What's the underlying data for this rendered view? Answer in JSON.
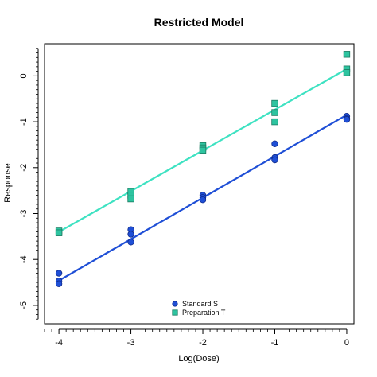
{
  "chart_data": {
    "type": "scatter",
    "title": "Restricted Model",
    "xlabel": "Log(Dose)",
    "ylabel": "Response",
    "xlim": [
      -4.2,
      0.1
    ],
    "ylim": [
      -5.4,
      0.7
    ],
    "xticks": [
      -4,
      -3,
      -2,
      -1,
      0
    ],
    "yticks": [
      -5,
      -4,
      -3,
      -2,
      -1,
      0
    ],
    "grid": false,
    "legend_position": "bottom-center",
    "series": [
      {
        "name": "Standard S",
        "marker": "circle",
        "color": "#1f4fd6",
        "line_color": "#1f4fd6",
        "points": [
          {
            "x": -4,
            "y": -4.3
          },
          {
            "x": -4,
            "y": -4.47
          },
          {
            "x": -4,
            "y": -4.53
          },
          {
            "x": -3,
            "y": -3.35
          },
          {
            "x": -3,
            "y": -3.45
          },
          {
            "x": -3,
            "y": -3.62
          },
          {
            "x": -2,
            "y": -2.6
          },
          {
            "x": -2,
            "y": -2.65
          },
          {
            "x": -2,
            "y": -2.7
          },
          {
            "x": -1,
            "y": -1.48
          },
          {
            "x": -1,
            "y": -1.78
          },
          {
            "x": -1,
            "y": -1.83
          },
          {
            "x": 0,
            "y": -0.88
          },
          {
            "x": 0,
            "y": -0.93
          },
          {
            "x": 0,
            "y": -0.95
          }
        ],
        "fit": [
          {
            "x": -4,
            "y": -4.46
          },
          {
            "x": 0,
            "y": -0.85
          }
        ]
      },
      {
        "name": "Preparation T",
        "marker": "square",
        "color": "#2ec4a0",
        "line_color": "#3ee2c2",
        "points": [
          {
            "x": -4,
            "y": -3.38
          },
          {
            "x": -4,
            "y": -3.42
          },
          {
            "x": -3,
            "y": -2.52
          },
          {
            "x": -3,
            "y": -2.6
          },
          {
            "x": -3,
            "y": -2.68
          },
          {
            "x": -2,
            "y": -1.52
          },
          {
            "x": -2,
            "y": -1.57
          },
          {
            "x": -2,
            "y": -1.62
          },
          {
            "x": -1,
            "y": -0.6
          },
          {
            "x": -1,
            "y": -0.8
          },
          {
            "x": -1,
            "y": -1.0
          },
          {
            "x": 0,
            "y": 0.47
          },
          {
            "x": 0,
            "y": 0.15
          },
          {
            "x": 0,
            "y": 0.07
          }
        ],
        "fit": [
          {
            "x": -4,
            "y": -3.4
          },
          {
            "x": 0,
            "y": 0.15
          }
        ]
      }
    ]
  }
}
